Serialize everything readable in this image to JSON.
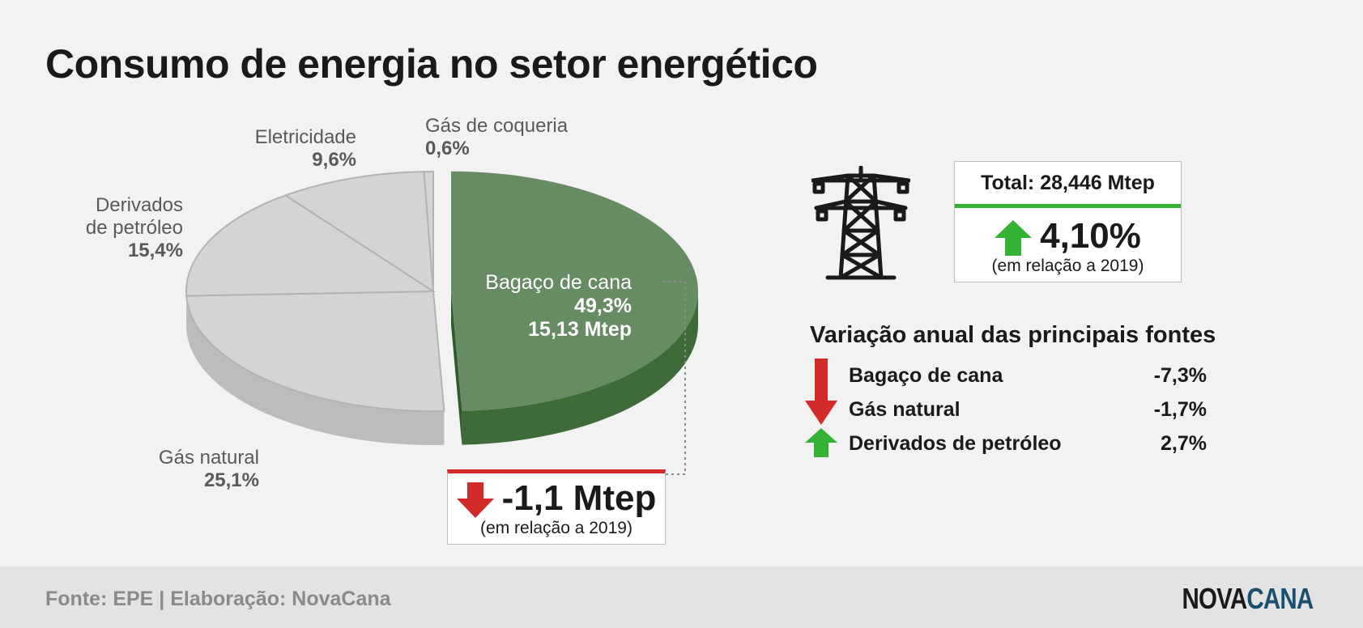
{
  "title": "Consumo de energia no setor energético",
  "chart_data": {
    "type": "pie",
    "title": "Consumo de energia no setor energético",
    "slices": [
      {
        "name": "Bagaço de cana",
        "value": 49.3,
        "label": "49,3%",
        "extra": "15,13 Mtep",
        "color": "#678b63",
        "side_color": "#3f6b3a",
        "exploded": true
      },
      {
        "name": "Gás natural",
        "value": 25.1,
        "label": "25,1%",
        "color": "#d4d4d4",
        "side_color": "#bcbcbc"
      },
      {
        "name": "Derivados de petróleo",
        "value": 15.4,
        "label": "15,4%",
        "color": "#d4d4d4",
        "side_color": "#bcbcbc"
      },
      {
        "name": "Eletricidade",
        "value": 9.6,
        "label": "9,6%",
        "color": "#d4d4d4",
        "side_color": "#bcbcbc"
      },
      {
        "name": "Gás de coqueria",
        "value": 0.6,
        "label": "0,6%",
        "color": "#d4d4d4",
        "side_color": "#bcbcbc"
      }
    ]
  },
  "labels": {
    "eletricidade": "Eletricidade",
    "gas_coqueria": "Gás de coqueria",
    "derivados_l1": "Derivados",
    "derivados_l2": "de petróleo",
    "gas_natural": "Gás natural",
    "bagaco": "Bagaço de cana"
  },
  "delta": {
    "value": "-1,1 Mtep",
    "sub": "(em relação a 2019)",
    "arrow_color": "#d32a2a"
  },
  "total": {
    "label": "Total: 28,446 Mtep",
    "pct": "4,10%",
    "sub": "(em relação a 2019)",
    "arrow_color": "#34b233"
  },
  "variation": {
    "title": "Variação anual das principais fontes",
    "rows": [
      {
        "name": "Bagaço de cana",
        "pct": "-7,3%",
        "direction": "down"
      },
      {
        "name": "Gás natural",
        "pct": "-1,7%",
        "direction": "down"
      },
      {
        "name": "Derivados de petróleo",
        "pct": "2,7%",
        "direction": "up"
      }
    ],
    "up_color": "#34b233",
    "down_color": "#d32a2a"
  },
  "footer": {
    "source": "Fonte: EPE | Elaboração: NovaCana",
    "logo_a": "NOVA",
    "logo_b": "CANA"
  },
  "icons": {
    "tower": "transmission-tower-icon"
  }
}
